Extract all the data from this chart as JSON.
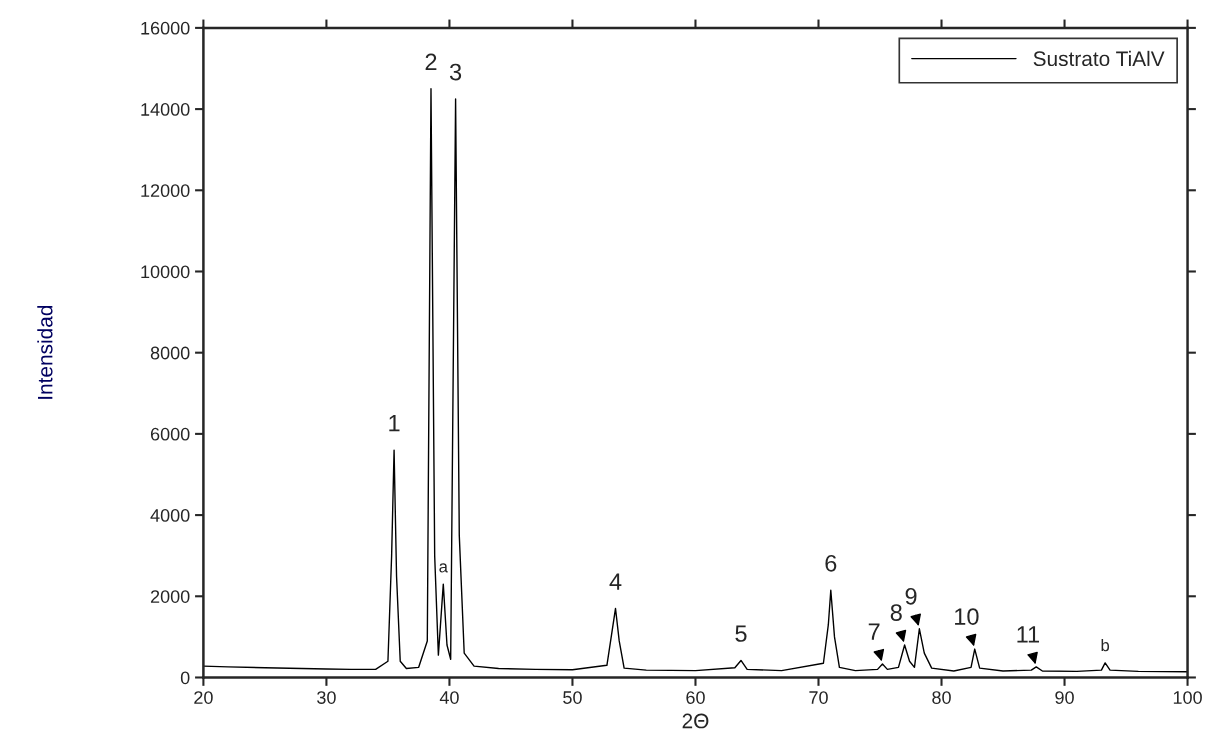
{
  "chart_data": {
    "type": "line",
    "xlabel": "2Θ",
    "ylabel": "Intensidad",
    "xlim": [
      20,
      100
    ],
    "ylim": [
      0,
      16000
    ],
    "xticks": [
      20,
      30,
      40,
      50,
      60,
      70,
      80,
      90,
      100
    ],
    "yticks": [
      0,
      2000,
      4000,
      6000,
      8000,
      10000,
      12000,
      14000,
      16000
    ],
    "grid": false,
    "legend": "top right",
    "marker": "none",
    "line_style": "solid",
    "series": [
      {
        "name": "Sustrato TiAlV",
        "color": "#000000",
        "x": [
          20,
          22,
          25,
          28,
          30,
          32,
          34,
          35.0,
          35.3,
          35.5,
          35.7,
          36.0,
          36.5,
          37.5,
          38.2,
          38.5,
          38.8,
          39.1,
          39.5,
          39.8,
          40.1,
          40.5,
          40.8,
          41.2,
          42,
          44,
          47,
          50,
          52.8,
          53.2,
          53.5,
          53.8,
          54.2,
          56,
          60,
          63.2,
          63.7,
          64.2,
          67,
          70.4,
          70.8,
          71.0,
          71.3,
          71.7,
          73,
          74.8,
          75.2,
          75.6,
          76.5,
          77.0,
          77.4,
          77.8,
          78.2,
          78.6,
          79.2,
          81,
          82.4,
          82.7,
          83.1,
          85,
          87.3,
          87.7,
          88.2,
          91,
          93.0,
          93.3,
          93.7,
          96,
          100
        ],
        "values": [
          280,
          260,
          240,
          220,
          210,
          200,
          200,
          400,
          3000,
          5600,
          2500,
          400,
          220,
          250,
          900,
          14500,
          3000,
          550,
          2300,
          800,
          450,
          14250,
          3500,
          600,
          280,
          220,
          200,
          190,
          300,
          1100,
          1700,
          900,
          230,
          180,
          170,
          240,
          420,
          200,
          170,
          350,
          1300,
          2150,
          1000,
          250,
          170,
          200,
          330,
          200,
          250,
          800,
          400,
          250,
          1200,
          600,
          230,
          160,
          250,
          700,
          230,
          160,
          180,
          260,
          160,
          150,
          180,
          360,
          180,
          150,
          140
        ]
      }
    ],
    "annotations": [
      {
        "text": "1",
        "x": 35.5,
        "y": 5600
      },
      {
        "text": "2",
        "x": 38.5,
        "y": 14500
      },
      {
        "text": "3",
        "x": 40.5,
        "y": 14250
      },
      {
        "text": "a",
        "x": 39.5,
        "y": 2300
      },
      {
        "text": "4",
        "x": 53.5,
        "y": 1700
      },
      {
        "text": "5",
        "x": 63.7,
        "y": 420
      },
      {
        "text": "6",
        "x": 71.0,
        "y": 2150
      },
      {
        "text": "7",
        "x": 75.2,
        "y": 330
      },
      {
        "text": "8",
        "x": 77.0,
        "y": 800
      },
      {
        "text": "9",
        "x": 78.2,
        "y": 1200
      },
      {
        "text": "10",
        "x": 82.7,
        "y": 700
      },
      {
        "text": "11",
        "x": 87.7,
        "y": 260
      },
      {
        "text": "b",
        "x": 93.3,
        "y": 360
      }
    ]
  }
}
